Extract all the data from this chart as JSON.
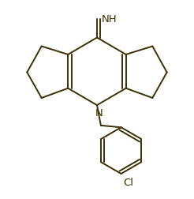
{
  "background_color": "#ffffff",
  "line_color": "#3a3000",
  "text_color": "#3a3000",
  "line_width": 1.4,
  "figsize": [
    2.46,
    2.53
  ],
  "dpi": 100,
  "NH_label": "NH",
  "N_label": "N",
  "Cl_label": "Cl"
}
